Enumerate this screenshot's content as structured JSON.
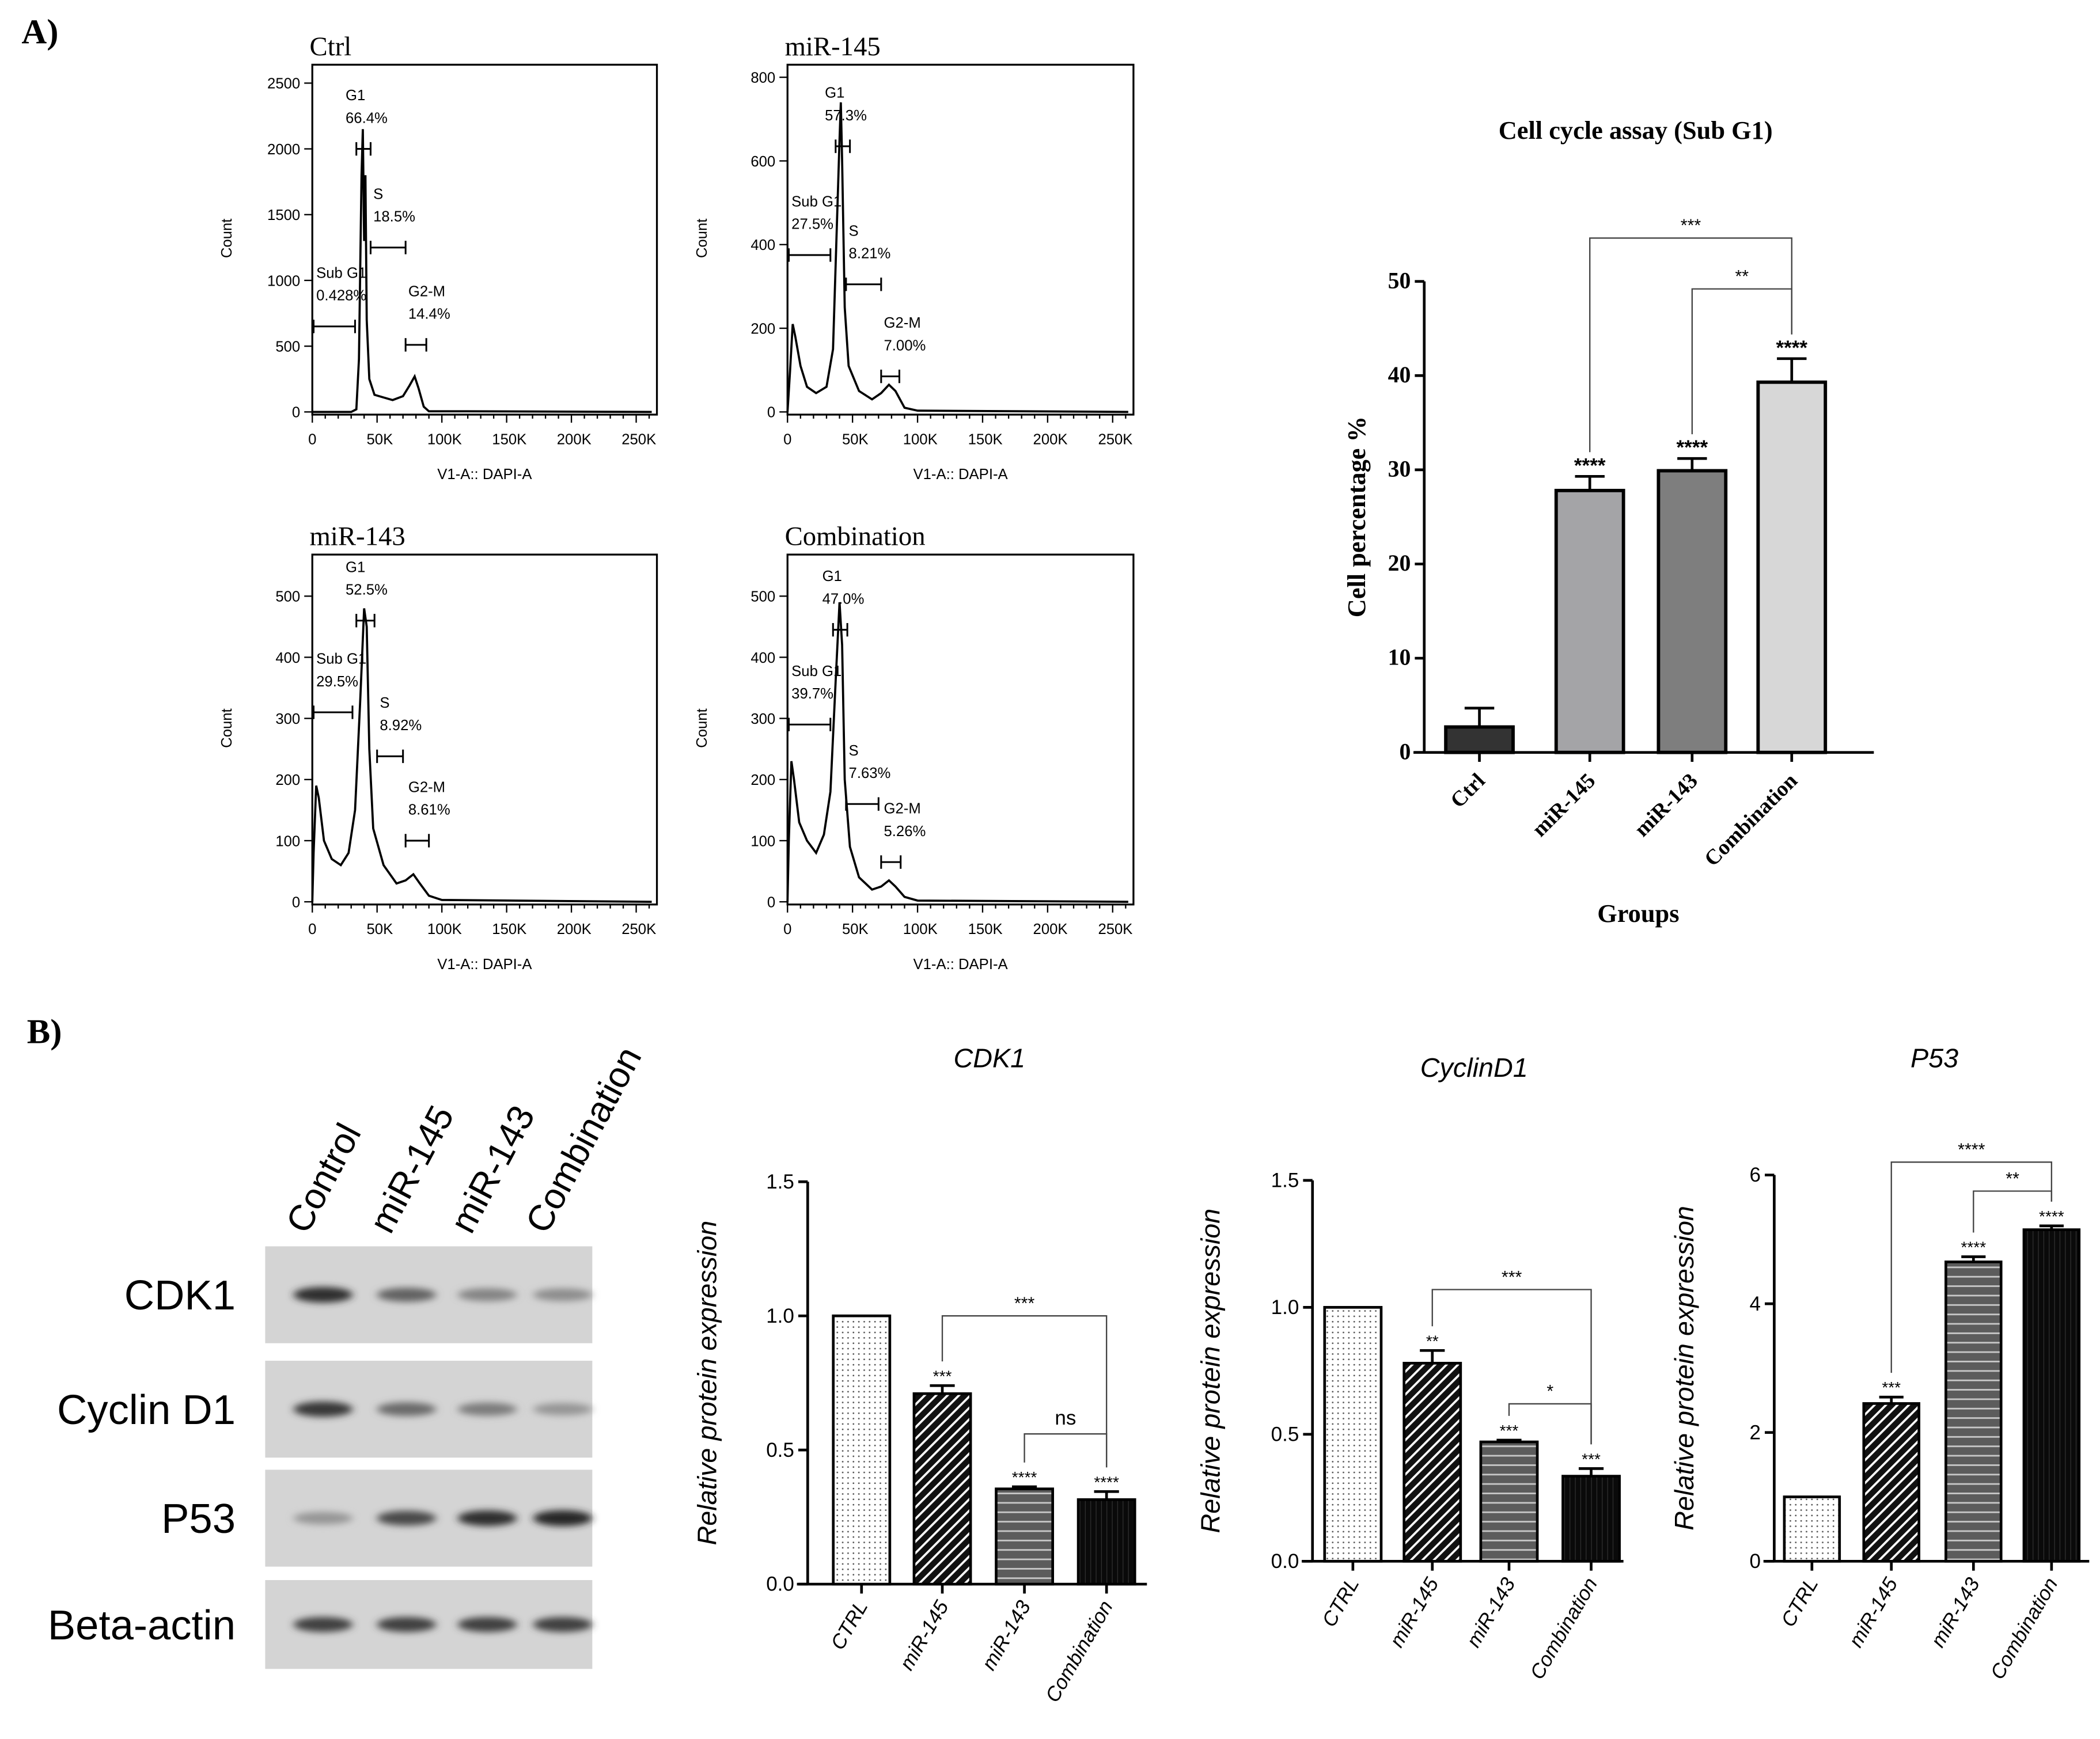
{
  "figure": {
    "panel_a_label": "A)",
    "panel_b_label": "B)"
  },
  "western_blot": {
    "lanes": [
      "Control",
      "miR-145",
      "miR-143",
      "Combination"
    ],
    "proteins": [
      "CDK1",
      "Cyclin D1",
      "P53",
      "Beta-actin"
    ],
    "band_intensity": [
      [
        0.9,
        0.6,
        0.4,
        0.35
      ],
      [
        0.85,
        0.55,
        0.45,
        0.3
      ],
      [
        0.3,
        0.75,
        0.9,
        0.95
      ],
      [
        0.8,
        0.8,
        0.8,
        0.8
      ]
    ]
  },
  "chart_data": [
    {
      "type": "line",
      "title": "Ctrl",
      "xlabel": "V1-A:: DAPI-A",
      "ylabel": "Count",
      "xlim": [
        0,
        266000
      ],
      "ylim": [
        0,
        2640
      ],
      "xticks": [
        0,
        50000,
        100000,
        150000,
        200000,
        250000
      ],
      "xtick_labels": [
        "0",
        "50K",
        "100K",
        "150K",
        "200K",
        "250K"
      ],
      "yticks": [
        0,
        500,
        1000,
        1500,
        2000,
        2500
      ],
      "ytick_labels": [
        "0",
        "500",
        "1000",
        "1500",
        "2000",
        "2500"
      ],
      "curve": [
        [
          0,
          0
        ],
        [
          30000,
          0
        ],
        [
          34000,
          20
        ],
        [
          36000,
          400
        ],
        [
          38000,
          1800
        ],
        [
          39000,
          2150
        ],
        [
          40000,
          1300
        ],
        [
          41000,
          1800
        ],
        [
          42000,
          700
        ],
        [
          44000,
          250
        ],
        [
          48000,
          130
        ],
        [
          55000,
          110
        ],
        [
          62000,
          90
        ],
        [
          70000,
          120
        ],
        [
          75000,
          200
        ],
        [
          79000,
          270
        ],
        [
          82000,
          180
        ],
        [
          86000,
          40
        ],
        [
          90000,
          5
        ],
        [
          120000,
          5
        ],
        [
          262000,
          0
        ]
      ],
      "gates": [
        {
          "name": "Sub G1",
          "percent": "0.428%",
          "x": [
            1000,
            33000
          ],
          "y": 650
        },
        {
          "name": "G1",
          "percent": "66.4%",
          "x": [
            34000,
            45000
          ],
          "y": 2000
        },
        {
          "name": "S",
          "percent": "18.5%",
          "x": [
            45000,
            72000
          ],
          "y": 1250
        },
        {
          "name": "G2-M",
          "percent": "14.4%",
          "x": [
            72000,
            88000
          ],
          "y": 510
        }
      ]
    },
    {
      "type": "line",
      "title": "miR-145",
      "xlabel": "V1-A:: DAPI-A",
      "ylabel": "Count",
      "xlim": [
        0,
        266000
      ],
      "ylim": [
        0,
        830
      ],
      "xticks": [
        0,
        50000,
        100000,
        150000,
        200000,
        250000
      ],
      "xtick_labels": [
        "0",
        "50K",
        "100K",
        "150K",
        "200K",
        "250K"
      ],
      "yticks": [
        0,
        200,
        400,
        600,
        800
      ],
      "ytick_labels": [
        "0",
        "200",
        "400",
        "600",
        "800"
      ],
      "curve": [
        [
          0,
          0
        ],
        [
          2000,
          100
        ],
        [
          4000,
          210
        ],
        [
          6000,
          180
        ],
        [
          10000,
          110
        ],
        [
          15000,
          60
        ],
        [
          22000,
          45
        ],
        [
          30000,
          60
        ],
        [
          35000,
          150
        ],
        [
          38000,
          450
        ],
        [
          40000,
          650
        ],
        [
          41000,
          740
        ],
        [
          42000,
          600
        ],
        [
          44000,
          250
        ],
        [
          47000,
          110
        ],
        [
          55000,
          50
        ],
        [
          65000,
          30
        ],
        [
          72000,
          45
        ],
        [
          78000,
          65
        ],
        [
          83000,
          50
        ],
        [
          90000,
          10
        ],
        [
          100000,
          3
        ],
        [
          262000,
          0
        ]
      ],
      "gates": [
        {
          "name": "Sub G1",
          "percent": "27.5%",
          "x": [
            1000,
            33000
          ],
          "y": 375
        },
        {
          "name": "G1",
          "percent": "57.3%",
          "x": [
            37000,
            48000
          ],
          "y": 635
        },
        {
          "name": "S",
          "percent": "8.21%",
          "x": [
            45000,
            72000
          ],
          "y": 305
        },
        {
          "name": "G2-M",
          "percent": "7.00%",
          "x": [
            72000,
            86000
          ],
          "y": 85
        }
      ]
    },
    {
      "type": "line",
      "title": "miR-143",
      "xlabel": "V1-A:: DAPI-A",
      "ylabel": "Count",
      "xlim": [
        0,
        266000
      ],
      "ylim": [
        0,
        568
      ],
      "xticks": [
        0,
        50000,
        100000,
        150000,
        200000,
        250000
      ],
      "xtick_labels": [
        "0",
        "50K",
        "100K",
        "150K",
        "200K",
        "250K"
      ],
      "yticks": [
        0,
        100,
        200,
        300,
        400,
        500
      ],
      "ytick_labels": [
        "0",
        "100",
        "200",
        "300",
        "400",
        "500"
      ],
      "curve": [
        [
          0,
          0
        ],
        [
          1000,
          80
        ],
        [
          3000,
          190
        ],
        [
          5000,
          170
        ],
        [
          9000,
          100
        ],
        [
          15000,
          70
        ],
        [
          22000,
          60
        ],
        [
          28000,
          80
        ],
        [
          33000,
          150
        ],
        [
          37000,
          330
        ],
        [
          40000,
          480
        ],
        [
          42000,
          450
        ],
        [
          44000,
          250
        ],
        [
          47000,
          120
        ],
        [
          55000,
          60
        ],
        [
          65000,
          30
        ],
        [
          72000,
          35
        ],
        [
          78000,
          45
        ],
        [
          83000,
          30
        ],
        [
          90000,
          10
        ],
        [
          100000,
          3
        ],
        [
          262000,
          0
        ]
      ],
      "gates": [
        {
          "name": "Sub G1",
          "percent": "29.5%",
          "x": [
            1000,
            31000
          ],
          "y": 310
        },
        {
          "name": "G1",
          "percent": "52.5%",
          "x": [
            34000,
            48000
          ],
          "y": 460
        },
        {
          "name": "S",
          "percent": "8.92%",
          "x": [
            50000,
            70000
          ],
          "y": 238
        },
        {
          "name": "G2-M",
          "percent": "8.61%",
          "x": [
            72000,
            90000
          ],
          "y": 100
        }
      ]
    },
    {
      "type": "line",
      "title": "Combination",
      "xlabel": "V1-A:: DAPI-A",
      "ylabel": "Count",
      "xlim": [
        0,
        266000
      ],
      "ylim": [
        0,
        568
      ],
      "xticks": [
        0,
        50000,
        100000,
        150000,
        200000,
        250000
      ],
      "xtick_labels": [
        "0",
        "50K",
        "100K",
        "150K",
        "200K",
        "250K"
      ],
      "yticks": [
        0,
        100,
        200,
        300,
        400,
        500
      ],
      "ytick_labels": [
        "0",
        "100",
        "200",
        "300",
        "400",
        "500"
      ],
      "curve": [
        [
          0,
          0
        ],
        [
          1000,
          100
        ],
        [
          3000,
          230
        ],
        [
          5000,
          200
        ],
        [
          9000,
          130
        ],
        [
          15000,
          100
        ],
        [
          22000,
          80
        ],
        [
          28000,
          110
        ],
        [
          33000,
          180
        ],
        [
          37000,
          360
        ],
        [
          40000,
          490
        ],
        [
          42000,
          420
        ],
        [
          44000,
          200
        ],
        [
          48000,
          90
        ],
        [
          55000,
          40
        ],
        [
          65000,
          20
        ],
        [
          72000,
          25
        ],
        [
          78000,
          35
        ],
        [
          83000,
          25
        ],
        [
          90000,
          8
        ],
        [
          100000,
          2
        ],
        [
          262000,
          0
        ]
      ],
      "gates": [
        {
          "name": "Sub G1",
          "percent": "39.7%",
          "x": [
            1000,
            33000
          ],
          "y": 290
        },
        {
          "name": "G1",
          "percent": "47.0%",
          "x": [
            35000,
            46000
          ],
          "y": 445
        },
        {
          "name": "S",
          "percent": "7.63%",
          "x": [
            45000,
            70000
          ],
          "y": 160
        },
        {
          "name": "G2-M",
          "percent": "5.26%",
          "x": [
            72000,
            87000
          ],
          "y": 65
        }
      ]
    },
    {
      "type": "bar",
      "title": "Cell cycle assay (Sub G1)",
      "xlabel": "Groups",
      "ylabel": "Cell percentage %",
      "categories": [
        "Ctrl",
        "miR-145",
        "miR-143",
        "Combination"
      ],
      "values": [
        2.7,
        27.8,
        29.9,
        39.3
      ],
      "errors": [
        2.0,
        1.5,
        1.3,
        2.5
      ],
      "ylim": [
        0,
        50
      ],
      "yticks": [
        0,
        10,
        20,
        30,
        40,
        50
      ],
      "ytick_labels": [
        "0",
        "10",
        "20",
        "30",
        "40",
        "50"
      ],
      "colors": [
        "#333333",
        "#a4a4a7",
        "#7e7e7e",
        "#d7d7d7"
      ],
      "bar_labels": [
        "",
        "****",
        "****",
        "****"
      ],
      "comparisons": [
        {
          "from": 1,
          "to": 3,
          "label": "***",
          "y": 54.6
        },
        {
          "from": 2,
          "to": 3,
          "label": "**",
          "y": 49.2
        }
      ]
    },
    {
      "type": "bar",
      "title": "CDK1",
      "xlabel": "",
      "ylabel": "Relative protein expression",
      "categories": [
        "CTRL",
        "miR-145",
        "miR-143",
        "Combination"
      ],
      "values": [
        1.0,
        0.71,
        0.355,
        0.315
      ],
      "errors": [
        0,
        0.03,
        0.008,
        0.03
      ],
      "ylim": [
        0,
        1.5
      ],
      "yticks": [
        0,
        0.5,
        1.0,
        1.5
      ],
      "ytick_labels": [
        "0.0",
        "0.5",
        "1.0",
        "1.5"
      ],
      "patterns": [
        "dots",
        "diagonal",
        "horizontal",
        "solid"
      ],
      "bar_labels": [
        "",
        "***",
        "****",
        "****"
      ],
      "comparisons": [
        {
          "from": 1,
          "to": 3,
          "label": "***",
          "y": 1.0
        },
        {
          "from": 2,
          "to": 3,
          "label": "ns",
          "y": 0.56
        }
      ]
    },
    {
      "type": "bar",
      "title": "CyclinD1",
      "xlabel": "",
      "ylabel": "Relative protein expression",
      "categories": [
        "CTRL",
        "miR-145",
        "miR-143",
        "Combination"
      ],
      "values": [
        1.0,
        0.78,
        0.47,
        0.335
      ],
      "errors": [
        0,
        0.05,
        0.007,
        0.03
      ],
      "ylim": [
        0,
        1.5
      ],
      "yticks": [
        0,
        0.5,
        1.0,
        1.5
      ],
      "ytick_labels": [
        "0.0",
        "0.5",
        "1.0",
        "1.5"
      ],
      "patterns": [
        "dots",
        "diagonal",
        "horizontal",
        "solid"
      ],
      "bar_labels": [
        "",
        "**",
        "***",
        "***"
      ],
      "comparisons": [
        {
          "from": 1,
          "to": 3,
          "label": "***",
          "y": 1.07
        },
        {
          "from": 2,
          "to": 3,
          "label": "*",
          "y": 0.62
        }
      ]
    },
    {
      "type": "bar",
      "title": "P53",
      "xlabel": "",
      "ylabel": "Relative protein expression",
      "categories": [
        "CTRL",
        "miR-145",
        "miR-143",
        "Combination"
      ],
      "values": [
        1.0,
        2.45,
        4.65,
        5.15
      ],
      "errors": [
        0,
        0.1,
        0.08,
        0.06
      ],
      "ylim": [
        0,
        6
      ],
      "yticks": [
        0,
        2,
        4,
        6
      ],
      "ytick_labels": [
        "0",
        "2",
        "4",
        "6"
      ],
      "patterns": [
        "dots",
        "diagonal",
        "horizontal",
        "solid"
      ],
      "bar_labels": [
        "",
        "***",
        "****",
        "****"
      ],
      "comparisons": [
        {
          "from": 1,
          "to": 3,
          "label": "****",
          "y": 6.2
        },
        {
          "from": 2,
          "to": 3,
          "label": "**",
          "y": 5.75
        }
      ]
    }
  ]
}
